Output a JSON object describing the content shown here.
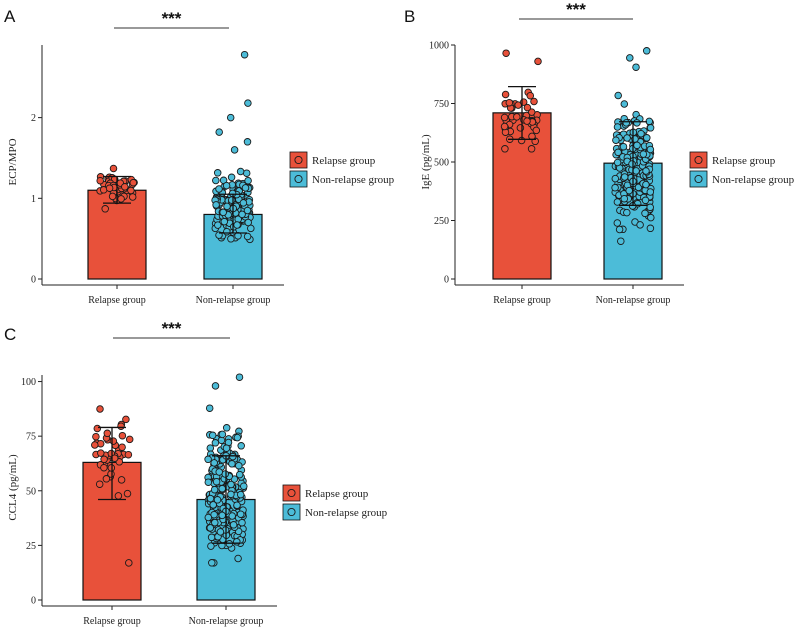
{
  "colors": {
    "relapse": "#E8513A",
    "non_relapse": "#4CBCD8",
    "axis": "#222222"
  },
  "chart_data": [
    {
      "panel": "A",
      "type": "bar",
      "categories": [
        "Relapse group",
        "Non-relapse group"
      ],
      "values": [
        1.1,
        0.8
      ],
      "error_low": [
        0.94,
        0.57
      ],
      "error_high": [
        1.27,
        1.05
      ],
      "point_range": [
        [
          0.8,
          1.5
        ],
        [
          0.33,
          1.55
        ]
      ],
      "point_extra": [
        [],
        [
          2.78,
          2.18,
          2.0,
          1.82,
          1.6,
          1.7
        ]
      ],
      "n_points": [
        45,
        160
      ],
      "ylabel": "ECP/MPO",
      "ylim": [
        0,
        2.9
      ],
      "yticks": [
        0,
        1,
        2
      ],
      "significance": "***",
      "legend": [
        "Relapse group",
        "Non-relapse group"
      ]
    },
    {
      "panel": "B",
      "type": "bar",
      "categories": [
        "Relapse group",
        "Non-relapse group"
      ],
      "values": [
        710,
        495
      ],
      "error_low": [
        597,
        315
      ],
      "error_high": [
        822,
        672
      ],
      "point_range": [
        [
          480,
          880
        ],
        [
          55,
          870
        ]
      ],
      "point_extra": [
        [
          965,
          930
        ],
        [
          975,
          945,
          905
        ]
      ],
      "n_points": [
        45,
        240
      ],
      "ylabel": "IgE (pg/mL)",
      "ylim": [
        0,
        1000
      ],
      "yticks": [
        0,
        250,
        500,
        750,
        1000
      ],
      "significance": "***",
      "legend": [
        "Relapse group",
        "Non-relapse group"
      ]
    },
    {
      "panel": "C",
      "type": "bar",
      "categories": [
        "Relapse group",
        "Non-relapse group"
      ],
      "values": [
        63,
        46
      ],
      "error_low": [
        46,
        26
      ],
      "error_high": [
        79,
        66
      ],
      "point_range": [
        [
          36,
          96
        ],
        [
          1,
          96
        ]
      ],
      "point_extra": [
        [
          17
        ],
        [
          102,
          98
        ]
      ],
      "n_points": [
        45,
        240
      ],
      "ylabel": "CCL4 (pg/mL)",
      "ylim": [
        0,
        103
      ],
      "yticks": [
        0,
        25,
        50,
        75,
        100
      ],
      "significance": "***",
      "legend": [
        "Relapse group",
        "Non-relapse group"
      ]
    }
  ]
}
